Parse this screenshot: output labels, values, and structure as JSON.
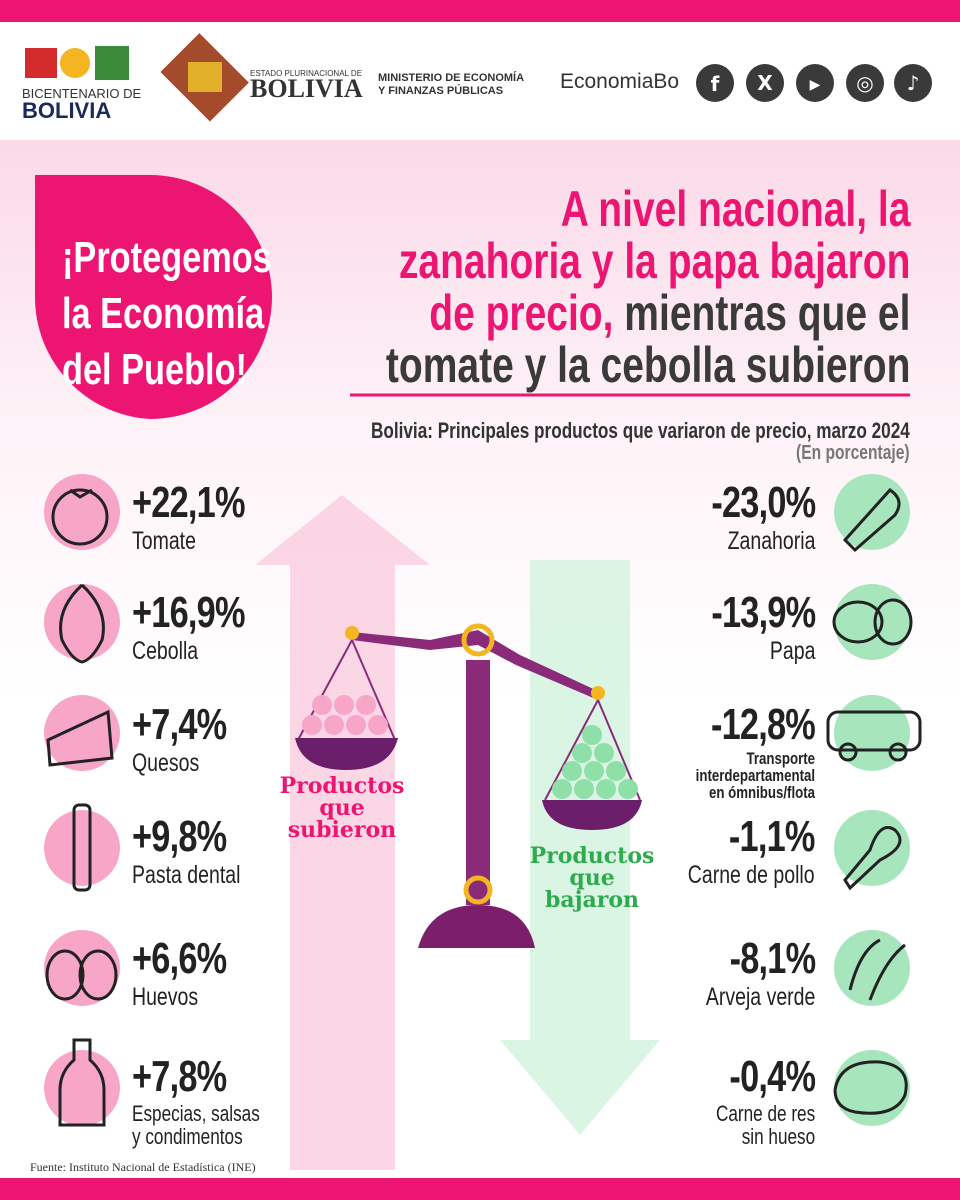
{
  "header": {
    "bicentenario_top": "BICENTENARIO DE",
    "bicentenario_bottom": "BOLIVIA",
    "estado_top": "ESTADO PLURINACIONAL DE",
    "estado_bottom": "BOLIVIA",
    "ministerio_lines": [
      "MINISTERIO DE ECONOMÍA",
      "Y FINANZAS PÚBLICAS"
    ],
    "handle": "EconomiaBo"
  },
  "badge_lines": [
    "¡Protegemos",
    "la Economía",
    "del Pueblo!"
  ],
  "headline": {
    "highlight_lines": [
      "A nivel nacional, la",
      "zanahoria y la papa bajaron",
      "de precio,"
    ],
    "rest_lines": [
      "mientras que el",
      "tomate y la cebolla subieron"
    ]
  },
  "subtitle": "Bolivia: Principales productos que variaron de precio, marzo 2024",
  "unit": "(En porcentaje)",
  "increases": [
    {
      "value": "+22,1%",
      "label": [
        "Tomate"
      ]
    },
    {
      "value": "+16,9%",
      "label": [
        "Cebolla"
      ]
    },
    {
      "value": "+7,4%",
      "label": [
        "Quesos"
      ]
    },
    {
      "value": "+9,8%",
      "label": [
        "Pasta dental"
      ]
    },
    {
      "value": "+6,6%",
      "label": [
        "Huevos"
      ]
    },
    {
      "value": "+7,8%",
      "label": [
        "Especias, salsas",
        "y condimentos"
      ]
    }
  ],
  "decreases": [
    {
      "value": "-23,0%",
      "label": [
        "Zanahoria"
      ]
    },
    {
      "value": "-13,9%",
      "label": [
        "Papa"
      ]
    },
    {
      "value": "-12,8%",
      "label": [
        "Transporte",
        "interdepartamental",
        "en ómnibus/flota"
      ]
    },
    {
      "value": "-1,1%",
      "label": [
        "Carne de pollo"
      ]
    },
    {
      "value": "-8,1%",
      "label": [
        "Arveja verde"
      ]
    },
    {
      "value": "-0,4%",
      "label": [
        "Carne de res",
        "sin hueso"
      ]
    }
  ],
  "scale_labels": {
    "up": [
      "Productos",
      "que",
      "subieron"
    ],
    "down": [
      "Productos",
      "que",
      "bajaron"
    ]
  },
  "source": "Fuente: Instituto Nacional de Estadística (INE)"
}
